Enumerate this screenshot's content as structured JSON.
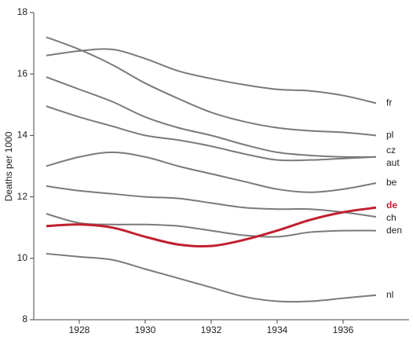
{
  "chart_data": {
    "type": "line",
    "y_label": "Deaths per 1000",
    "x": [
      1927,
      1928,
      1929,
      1930,
      1931,
      1932,
      1933,
      1934,
      1935,
      1936,
      1937
    ],
    "xlim": [
      1926.62,
      1938
    ],
    "xticks": [
      1928,
      1930,
      1932,
      1934,
      1936
    ],
    "ylim": [
      8,
      18
    ],
    "yticks": [
      8,
      10,
      12,
      14,
      16,
      18
    ],
    "series": [
      {
        "name": "fr",
        "color": "#7a7a7a",
        "values": [
          16.6,
          16.75,
          16.8,
          16.5,
          16.1,
          15.85,
          15.65,
          15.5,
          15.45,
          15.3,
          15.05
        ]
      },
      {
        "name": "pl",
        "color": "#7a7a7a",
        "values": [
          17.2,
          16.8,
          16.3,
          15.7,
          15.2,
          14.75,
          14.45,
          14.25,
          14.15,
          14.1,
          14.0
        ]
      },
      {
        "name": "cz",
        "color": "#7a7a7a",
        "values": [
          15.9,
          15.5,
          15.1,
          14.6,
          14.25,
          14.0,
          13.7,
          13.45,
          13.35,
          13.3,
          13.3
        ]
      },
      {
        "name": "aut",
        "color": "#7a7a7a",
        "values": [
          14.95,
          14.6,
          14.3,
          14.0,
          13.85,
          13.65,
          13.4,
          13.2,
          13.2,
          13.25,
          13.3
        ]
      },
      {
        "name": "be",
        "color": "#7a7a7a",
        "values": [
          13.0,
          13.3,
          13.45,
          13.3,
          13.0,
          12.75,
          12.5,
          12.25,
          12.15,
          12.25,
          12.45
        ]
      },
      {
        "name": "de",
        "color": "#c0202e",
        "values": [
          11.05,
          11.1,
          11.0,
          10.7,
          10.45,
          10.4,
          10.6,
          10.9,
          11.25,
          11.5,
          11.65
        ]
      },
      {
        "name": "ch",
        "color": "#7a7a7a",
        "values": [
          12.35,
          12.2,
          12.1,
          12.0,
          11.95,
          11.8,
          11.65,
          11.6,
          11.6,
          11.5,
          11.35
        ]
      },
      {
        "name": "den",
        "color": "#7a7a7a",
        "values": [
          11.45,
          11.15,
          11.1,
          11.1,
          11.05,
          10.9,
          10.75,
          10.7,
          10.85,
          10.9,
          10.9
        ]
      },
      {
        "name": "nl",
        "color": "#7a7a7a",
        "values": [
          10.15,
          10.05,
          9.95,
          9.65,
          9.35,
          9.05,
          8.75,
          8.6,
          8.6,
          8.7,
          8.8
        ]
      }
    ],
    "highlight": "de"
  }
}
